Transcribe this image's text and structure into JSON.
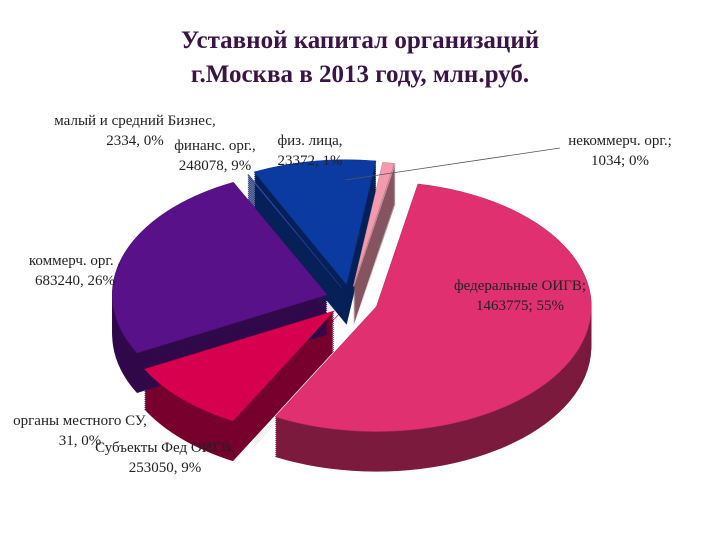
{
  "chart_data": {
    "type": "pie3d",
    "title": [
      "Уставной капитал организаций",
      "г.Москва в 2013 году, млн.руб."
    ],
    "categories": [
      "некоммерч. орг.;",
      "федеральные ОИГВ;",
      "органы местного СУ,",
      "Субъекты Фед ОИГВ,",
      "коммерч. орг. ,",
      "малый и средний Бизнес,",
      "финанс. орг.,",
      "физ. лица,"
    ],
    "values": [
      1034,
      1463775,
      31,
      253050,
      683240,
      2334,
      248078,
      23372
    ],
    "value_labels": [
      "1034;",
      "1463775;",
      "31,",
      "253050,",
      "683240,",
      "2334,",
      "248078,",
      "23372,"
    ],
    "percents": [
      0,
      55,
      0,
      9,
      26,
      0,
      9,
      1
    ],
    "percent_labels": [
      "0%",
      "55%",
      "0%",
      "9%",
      "26%",
      "0%",
      "9%",
      "1%"
    ],
    "colors": [
      "#f7c4cc",
      "#e0306f",
      "#80003f",
      "#d6004e",
      "#581188",
      "#3355cc",
      "#0b3aa0",
      "#f49aae"
    ]
  }
}
